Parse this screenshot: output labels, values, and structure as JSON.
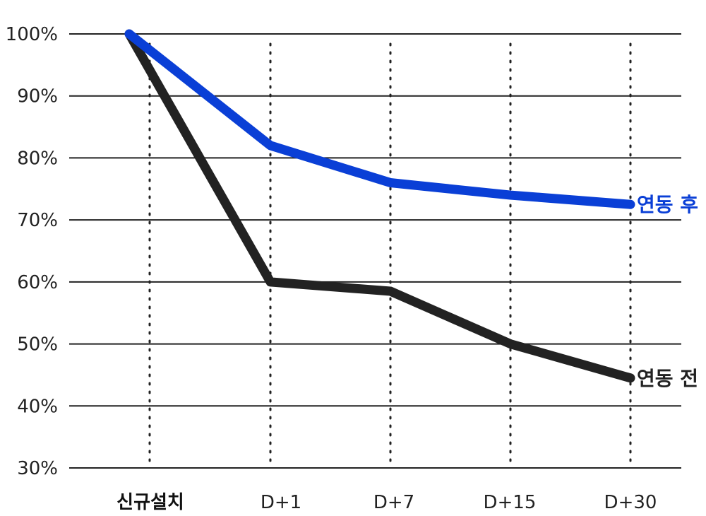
{
  "chart_data": {
    "type": "line",
    "categories": [
      "신규설치",
      "D+1",
      "D+7",
      "D+15",
      "D+30"
    ],
    "y_ticks": [
      "100%",
      "90%",
      "80%",
      "70%",
      "60%",
      "50%",
      "40%",
      "30%"
    ],
    "y_tick_values": [
      100,
      90,
      80,
      70,
      60,
      50,
      40,
      30
    ],
    "ylim": [
      30,
      100
    ],
    "grid": "horizontal solid, vertical dotted",
    "series": [
      {
        "name": "연동 후",
        "color": "#0a3fd6",
        "values": [
          100,
          82,
          76,
          74,
          72.5
        ]
      },
      {
        "name": "연동 전",
        "color": "#222222",
        "values": [
          100,
          60,
          58.5,
          50,
          44.5
        ]
      }
    ]
  }
}
